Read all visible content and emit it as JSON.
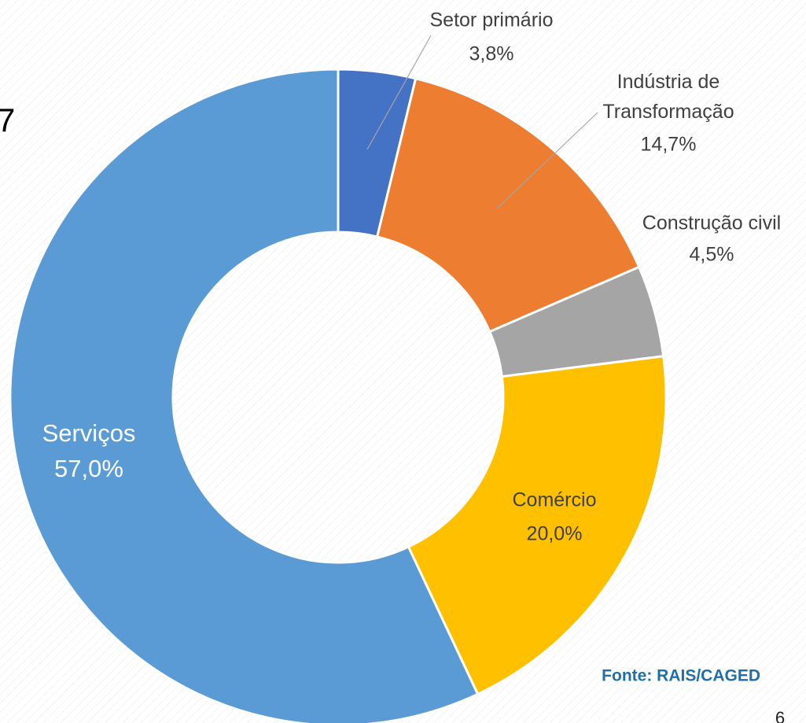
{
  "chart_data": {
    "type": "pie",
    "title_fragment": "7",
    "categories": [
      "Setor primário",
      "Indústria de Transformação",
      "Construção civil",
      "Comércio",
      "Serviços"
    ],
    "values": [
      3.8,
      14.7,
      4.5,
      20.0,
      57.0
    ],
    "value_labels": [
      "3,8%",
      "14,7%",
      "4,5%",
      "20,0%",
      "57,0%"
    ],
    "colors": [
      "#4472c4",
      "#ed7d31",
      "#a5a5a5",
      "#ffc000",
      "#5b9bd5"
    ],
    "source": "Fonte: RAIS/CAGED",
    "page_number": "6"
  }
}
